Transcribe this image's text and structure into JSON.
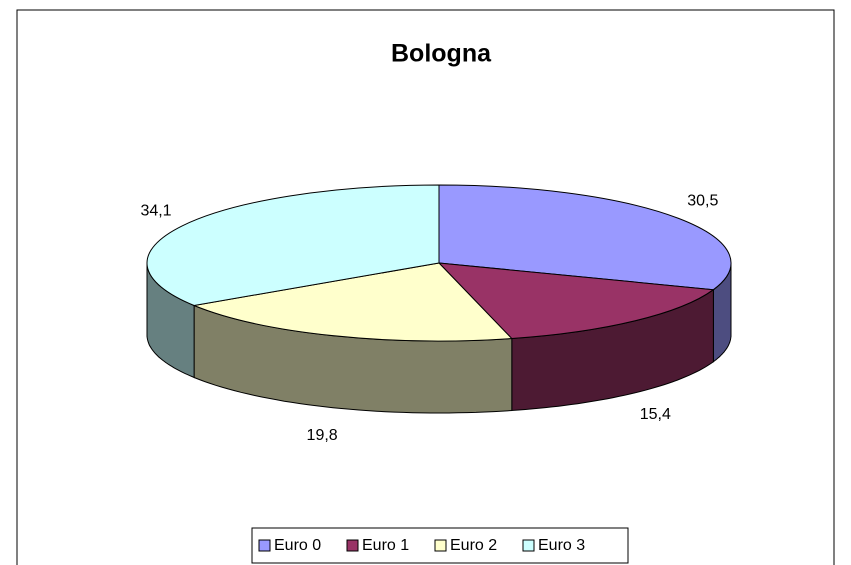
{
  "chart_data": {
    "type": "pie",
    "title": "Bologna",
    "categories": [
      "Euro 0",
      "Euro 1",
      "Euro 2",
      "Euro 3"
    ],
    "values": [
      30.5,
      15.4,
      19.8,
      34.1
    ],
    "value_labels": [
      "30,5",
      "15,4",
      "19,8",
      "34,1"
    ],
    "colors": [
      "#9999FF",
      "#993366",
      "#FFFFCC",
      "#CCFFFF"
    ],
    "legend": "bottom"
  }
}
